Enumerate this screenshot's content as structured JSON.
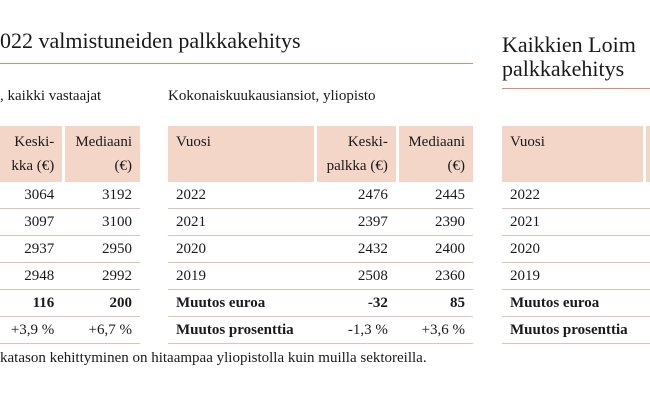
{
  "left_title": "022 valmistuneiden palkkakehitys",
  "right_title_line1": "Kaikkien Loim",
  "right_title_line2": "palkkakehitys",
  "table_a": {
    "subtitle": ", kaikki vastaajat",
    "header_col1_line1": "Keski-",
    "header_col1_line2": "kka (€)",
    "header_col2_line1": "Mediaani",
    "header_col2_line2": "(€)",
    "rows": [
      [
        "3064",
        "3192"
      ],
      [
        "3097",
        "3100"
      ],
      [
        "2937",
        "2950"
      ],
      [
        "2948",
        "2992"
      ],
      [
        "116",
        "200"
      ],
      [
        "+3,9 %",
        "+6,7 %"
      ]
    ]
  },
  "table_b": {
    "subtitle": "Kokonaiskuukausiansiot, yliopisto",
    "header_year": "Vuosi",
    "header_col1_line1": "Keski-",
    "header_col1_line2": "palkka (€)",
    "header_col2_line1": "Mediaani",
    "header_col2_line2": "(€)",
    "rows": [
      [
        "2022",
        "2476",
        "2445"
      ],
      [
        "2021",
        "2397",
        "2390"
      ],
      [
        "2020",
        "2432",
        "2400"
      ],
      [
        "2019",
        "2508",
        "2360"
      ],
      [
        "Muutos euroa",
        "-32",
        "85"
      ],
      [
        "Muutos prosenttia",
        "-1,3 %",
        "+3,6 %"
      ]
    ]
  },
  "table_c": {
    "header_year": "Vuosi",
    "rows": [
      "2022",
      "2021",
      "2020",
      "2019",
      "Muutos euroa",
      "Muutos prosenttia"
    ]
  },
  "footnote": "katason kehittyminen on hitaampaa yliopistolla kuin muilla sektoreilla."
}
